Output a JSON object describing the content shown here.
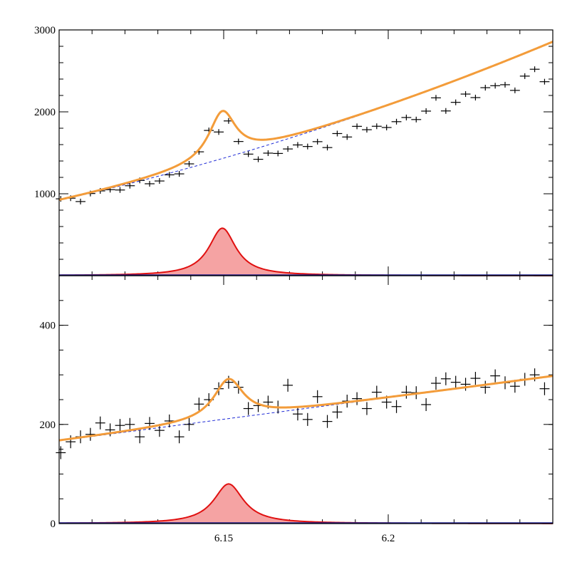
{
  "chart_data": {
    "type": "scatter",
    "x_range": [
      6.1,
      6.25
    ],
    "x_ticks": [
      {
        "value": 6.15,
        "label": "6.15"
      },
      {
        "value": 6.2,
        "label": "6.2"
      }
    ],
    "panels": [
      {
        "name": "top",
        "ylim": [
          0,
          3000
        ],
        "y_ticks": [
          {
            "value": 1000,
            "label": "1000"
          },
          {
            "value": 2000,
            "label": "2000"
          },
          {
            "value": 3000,
            "label": "3000"
          }
        ],
        "y_tick_label_bottom": "",
        "model": {
          "bkg_a": 920,
          "bkg_b1": 9000,
          "bkg_b2": 26000,
          "sig_amp": 580,
          "sig_mean": 6.1496,
          "sig_width": 0.005
        },
        "points": [
          [
            6.1005,
            938,
            35
          ],
          [
            6.1035,
            946,
            35
          ],
          [
            6.1065,
            905,
            35
          ],
          [
            6.1095,
            1003,
            35
          ],
          [
            6.1125,
            1035,
            35
          ],
          [
            6.1155,
            1050,
            35
          ],
          [
            6.1185,
            1046,
            35
          ],
          [
            6.1215,
            1098,
            35
          ],
          [
            6.1245,
            1163,
            35
          ],
          [
            6.1275,
            1122,
            35
          ],
          [
            6.1305,
            1156,
            35
          ],
          [
            6.1335,
            1231,
            35
          ],
          [
            6.1365,
            1243,
            35
          ],
          [
            6.1395,
            1365,
            35
          ],
          [
            6.1425,
            1512,
            35
          ],
          [
            6.1455,
            1773,
            35
          ],
          [
            6.1485,
            1754,
            35
          ],
          [
            6.1515,
            1889,
            35
          ],
          [
            6.1545,
            1638,
            35
          ],
          [
            6.1575,
            1484,
            35
          ],
          [
            6.1605,
            1421,
            35
          ],
          [
            6.1635,
            1496,
            35
          ],
          [
            6.1665,
            1492,
            35
          ],
          [
            6.1695,
            1547,
            35
          ],
          [
            6.1725,
            1596,
            35
          ],
          [
            6.1755,
            1577,
            35
          ],
          [
            6.1785,
            1636,
            35
          ],
          [
            6.1815,
            1564,
            35
          ],
          [
            6.1845,
            1735,
            35
          ],
          [
            6.1875,
            1693,
            35
          ],
          [
            6.1905,
            1823,
            35
          ],
          [
            6.1935,
            1782,
            35
          ],
          [
            6.1965,
            1824,
            35
          ],
          [
            6.1995,
            1809,
            35
          ],
          [
            6.2025,
            1880,
            35
          ],
          [
            6.2055,
            1931,
            35
          ],
          [
            6.2085,
            1906,
            35
          ],
          [
            6.2115,
            2009,
            35
          ],
          [
            6.2145,
            2171,
            35
          ],
          [
            6.2175,
            2011,
            35
          ],
          [
            6.2205,
            2116,
            35
          ],
          [
            6.2235,
            2217,
            35
          ],
          [
            6.2265,
            2174,
            35
          ],
          [
            6.2295,
            2295,
            35
          ],
          [
            6.2325,
            2319,
            35
          ],
          [
            6.2355,
            2331,
            35
          ],
          [
            6.2385,
            2262,
            35
          ],
          [
            6.2415,
            2436,
            35
          ],
          [
            6.2445,
            2520,
            35
          ],
          [
            6.2475,
            2368,
            35
          ]
        ]
      },
      {
        "name": "bottom",
        "ylim": [
          0,
          500
        ],
        "y_ticks": [
          {
            "value": 0,
            "label": "0"
          },
          {
            "value": 200,
            "label": "200"
          },
          {
            "value": 400,
            "label": "400"
          }
        ],
        "model": {
          "bkg_a": 167,
          "bkg_b1": 870,
          "bkg_b2": 0,
          "sig_amp": 80,
          "sig_mean": 6.1515,
          "sig_width": 0.0055
        },
        "points": [
          [
            6.1005,
            143,
            13
          ],
          [
            6.1035,
            165,
            13
          ],
          [
            6.1065,
            175,
            13
          ],
          [
            6.1095,
            180,
            13
          ],
          [
            6.1125,
            203,
            13
          ],
          [
            6.1155,
            189,
            13
          ],
          [
            6.1185,
            198,
            13
          ],
          [
            6.1215,
            200,
            13
          ],
          [
            6.1245,
            175,
            13
          ],
          [
            6.1275,
            202,
            13
          ],
          [
            6.1305,
            188,
            13
          ],
          [
            6.1335,
            207,
            13
          ],
          [
            6.1365,
            175,
            13
          ],
          [
            6.1395,
            200,
            13
          ],
          [
            6.1425,
            241,
            13
          ],
          [
            6.1455,
            250,
            13
          ],
          [
            6.1485,
            272,
            13
          ],
          [
            6.1515,
            285,
            13
          ],
          [
            6.1545,
            275,
            13
          ],
          [
            6.1575,
            232,
            13
          ],
          [
            6.1605,
            238,
            13
          ],
          [
            6.1635,
            245,
            13
          ],
          [
            6.1665,
            235,
            13
          ],
          [
            6.1695,
            279,
            13
          ],
          [
            6.1725,
            221,
            13
          ],
          [
            6.1755,
            210,
            13
          ],
          [
            6.1785,
            256,
            13
          ],
          [
            6.1815,
            206,
            13
          ],
          [
            6.1845,
            225,
            13
          ],
          [
            6.1875,
            247,
            13
          ],
          [
            6.1905,
            252,
            13
          ],
          [
            6.1935,
            232,
            13
          ],
          [
            6.1965,
            265,
            13
          ],
          [
            6.1995,
            245,
            13
          ],
          [
            6.2025,
            236,
            13
          ],
          [
            6.2055,
            265,
            13
          ],
          [
            6.2085,
            264,
            13
          ],
          [
            6.2115,
            240,
            13
          ],
          [
            6.2145,
            283,
            13
          ],
          [
            6.2175,
            292,
            13
          ],
          [
            6.2205,
            285,
            13
          ],
          [
            6.2235,
            281,
            13
          ],
          [
            6.2265,
            293,
            13
          ],
          [
            6.2295,
            275,
            13
          ],
          [
            6.2325,
            298,
            13
          ],
          [
            6.2355,
            284,
            13
          ],
          [
            6.2385,
            277,
            13
          ],
          [
            6.2415,
            291,
            13
          ],
          [
            6.2445,
            300,
            13
          ],
          [
            6.2475,
            272,
            13
          ]
        ]
      }
    ],
    "series": [
      {
        "name": "data",
        "style": "crosses"
      },
      {
        "name": "total fit",
        "color": "#f39c3a"
      },
      {
        "name": "background",
        "color": "#1f2bd6",
        "style": "dashed"
      },
      {
        "name": "signal",
        "color": "#e01010",
        "fill": "#f5a3a3"
      }
    ],
    "title": "",
    "xlabel": "",
    "ylabel": ""
  }
}
